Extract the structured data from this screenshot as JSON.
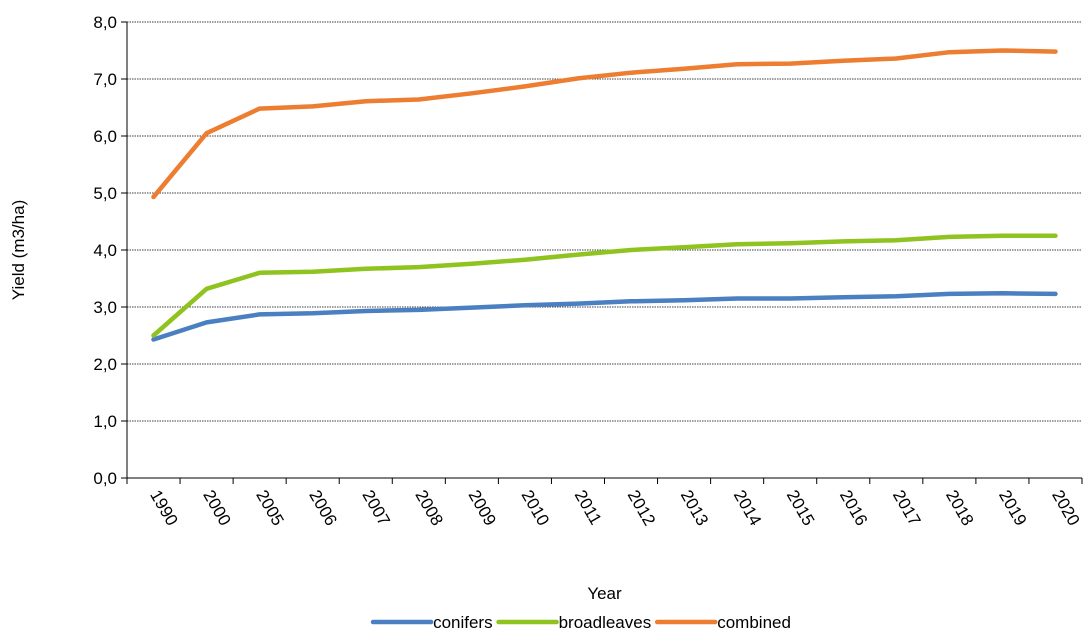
{
  "chart_data": {
    "type": "line",
    "title": "",
    "xlabel": "Year",
    "ylabel": "Yield (m3/ha)",
    "categories": [
      "1990",
      "2000",
      "2005",
      "2006",
      "2007",
      "2008",
      "2009",
      "2010",
      "2011",
      "2012",
      "2013",
      "2014",
      "2015",
      "2016",
      "2017",
      "2018",
      "2019",
      "2020"
    ],
    "ylim": [
      0,
      8
    ],
    "y_ticks": [
      "0,0",
      "1,0",
      "2,0",
      "3,0",
      "4,0",
      "5,0",
      "6,0",
      "7,0",
      "8,0"
    ],
    "grid": true,
    "legend_position": "bottom",
    "series": [
      {
        "name": "conifers",
        "color": "#4a7fc1",
        "values": [
          2.43,
          2.73,
          2.87,
          2.89,
          2.93,
          2.95,
          2.99,
          3.03,
          3.06,
          3.1,
          3.12,
          3.15,
          3.15,
          3.17,
          3.19,
          3.23,
          3.24,
          3.23
        ]
      },
      {
        "name": "broadleaves",
        "color": "#8fc31f",
        "values": [
          2.5,
          3.32,
          3.6,
          3.62,
          3.67,
          3.7,
          3.76,
          3.83,
          3.92,
          4.0,
          4.05,
          4.1,
          4.12,
          4.15,
          4.17,
          4.23,
          4.25,
          4.25
        ]
      },
      {
        "name": "combined",
        "color": "#ed7d31",
        "values": [
          4.93,
          6.05,
          6.48,
          6.52,
          6.61,
          6.64,
          6.75,
          6.87,
          7.01,
          7.11,
          7.18,
          7.26,
          7.27,
          7.32,
          7.36,
          7.47,
          7.5,
          7.48
        ]
      }
    ]
  }
}
